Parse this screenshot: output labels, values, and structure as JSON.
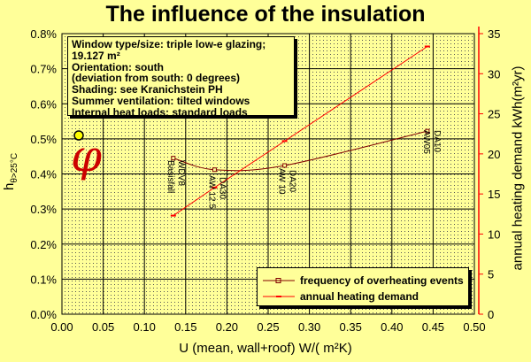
{
  "chart_data": {
    "type": "line",
    "title": "The influence of the insulation",
    "xlabel": "U (mean, wall+roof) W/( m²K)",
    "ylabel_left_main": "h",
    "ylabel_left_sub": "θ>25°C",
    "ylabel_right": "annual heating demand kWh(m²yr)",
    "xlim": [
      0.0,
      0.5
    ],
    "ylim_left": [
      0.0,
      0.008
    ],
    "ylim_right": [
      0,
      35
    ],
    "x_ticks": [
      "0.00",
      "0.05",
      "0.10",
      "0.15",
      "0.20",
      "0.25",
      "0.30",
      "0.35",
      "0.40",
      "0.45",
      "0.50"
    ],
    "y_left_ticks": [
      "0.0%",
      "0.1%",
      "0.2%",
      "0.3%",
      "0.4%",
      "0.5%",
      "0.6%",
      "0.7%",
      "0.8%"
    ],
    "y_right_ticks": [
      "0",
      "5",
      "10",
      "15",
      "20",
      "25",
      "30",
      "35"
    ],
    "grid": true,
    "series": [
      {
        "name": "frequency of overheating events",
        "axis": "left",
        "color": "#800000",
        "x": [
          0.135,
          0.185,
          0.27,
          0.443
        ],
        "y": [
          0.00445,
          0.00412,
          0.00424,
          0.00522
        ]
      },
      {
        "name": "annual heating demand",
        "axis": "right",
        "color": "#ff0000",
        "x": [
          0.135,
          0.185,
          0.27,
          0.443
        ],
        "y": [
          12.3,
          15.8,
          21.6,
          33.4
        ]
      }
    ],
    "annotations": [
      {
        "text": "Basisfall",
        "x": 0.135
      },
      {
        "text": "WDV8",
        "x": 0.135
      },
      {
        "text": "AW 12.5",
        "x": 0.185
      },
      {
        "text": "DA30",
        "x": 0.185
      },
      {
        "text": "AW 10",
        "x": 0.27
      },
      {
        "text": "DA20",
        "x": 0.27
      },
      {
        "text": "AW05",
        "x": 0.443
      },
      {
        "text": "DA10",
        "x": 0.443
      }
    ]
  },
  "infobox": {
    "lines": [
      "Window type/size: triple low-e glazing;",
      "19.127 m²",
      "Orientation: south",
      "(deviation from south: 0 degrees)",
      "Shading: see Kranichstein PH",
      "Summer ventilation: tilted windows",
      "Internal heat loads: standard loads"
    ]
  }
}
